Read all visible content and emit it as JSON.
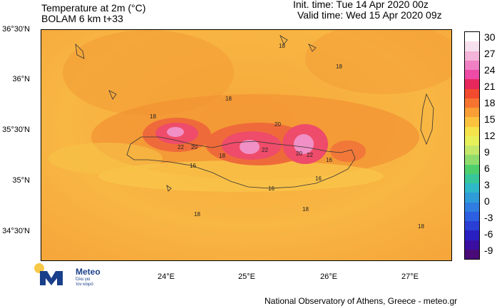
{
  "header": {
    "title_line1": "Temperature at 2m (°C)",
    "title_line2": "BOLAM 6 km t+33",
    "init_time": "Init. time: Tue 14 Apr 2020 00z",
    "valid_time": "Valid time: Wed 15 Apr 2020 09z"
  },
  "axes": {
    "lat_labels": [
      "36°30'N",
      "36°N",
      "35°30'N",
      "35°N",
      "34°30'N"
    ],
    "lon_labels": [
      "24°E",
      "25°E",
      "26°E",
      "27°E"
    ]
  },
  "colorbar": {
    "labels": [
      "30",
      "27",
      "24",
      "21",
      "18",
      "15",
      "12",
      "9",
      "6",
      "3",
      "0",
      "-3",
      "-6",
      "-9"
    ],
    "colors": [
      "#ffffff",
      "#f7e0ee",
      "#f4b3d9",
      "#f07fc4",
      "#ee4ba6",
      "#e8285c",
      "#f24a2e",
      "#f6742f",
      "#f99e35",
      "#fbc23d",
      "#f4e34b",
      "#e8f05a",
      "#c6e86a",
      "#8fdc6d",
      "#4fcf6b",
      "#37c79a",
      "#2fb8c8",
      "#2f9cd8",
      "#2f7de0",
      "#2d5fe2",
      "#2a3fd4",
      "#2a1fc0",
      "#3a0ea0",
      "#4a0a78"
    ]
  },
  "contour_labels": [
    "18",
    "18",
    "18",
    "18",
    "20",
    "22",
    "20",
    "22",
    "20",
    "22",
    "18",
    "16",
    "16",
    "16",
    "16",
    "18",
    "18",
    "18"
  ],
  "footer": {
    "credit": "National Observatory of Athens, Greece - meteo.gr",
    "logo_name": "Meteo",
    "logo_tagline_1": "Όλα για",
    "logo_tagline_2": "τον καιρό",
    "brand_yellow": "#f7c948",
    "brand_blue": "#1a3f8a"
  }
}
